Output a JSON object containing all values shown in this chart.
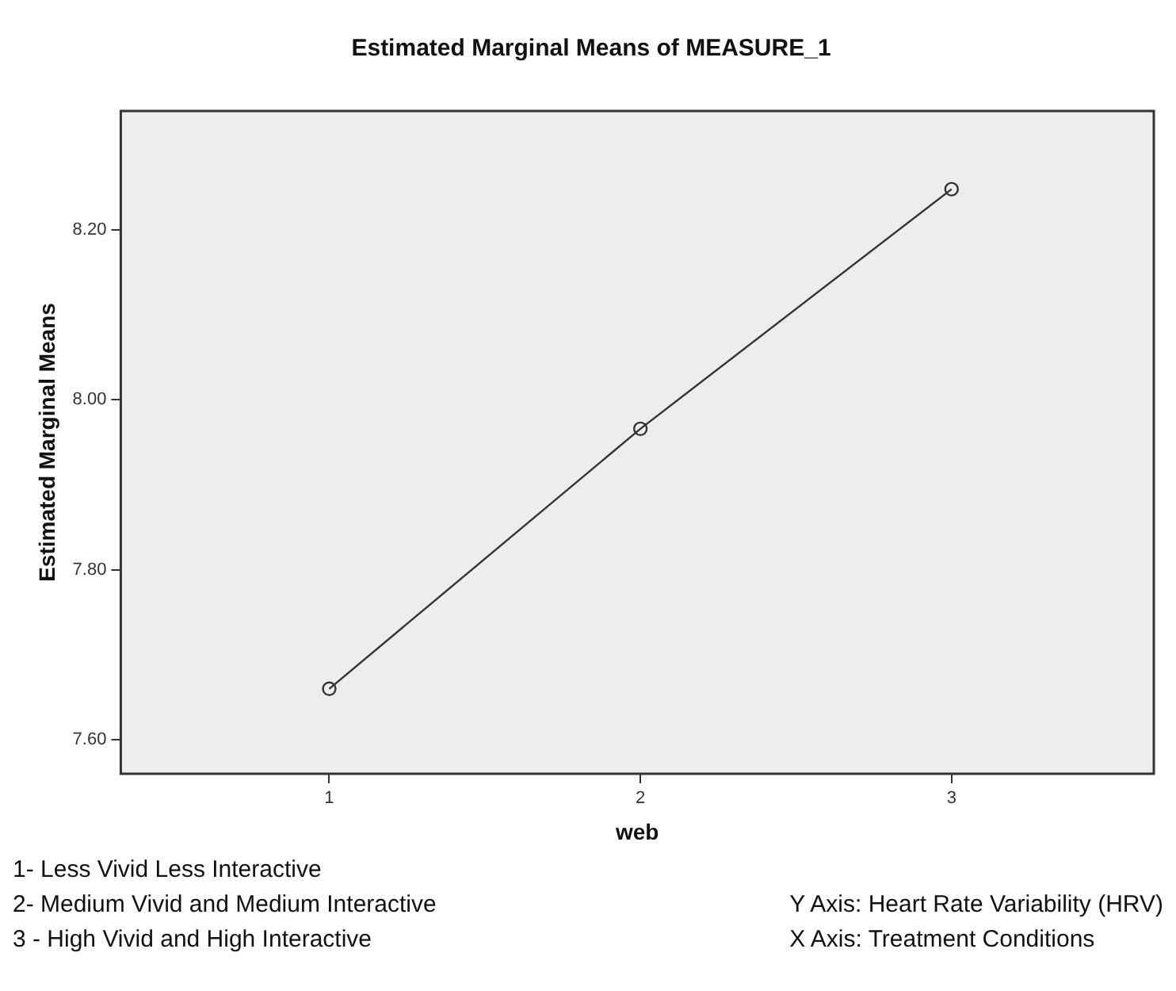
{
  "chart_data": {
    "type": "line",
    "title": "Estimated Marginal Means of MEASURE_1",
    "xlabel": "web",
    "ylabel": "Estimated Marginal Means",
    "x": [
      1,
      2,
      3
    ],
    "series": [
      {
        "color": "#333333",
        "values": [
          7.66,
          7.966,
          8.248
        ]
      }
    ],
    "xlim": [
      0.33,
      3.65
    ],
    "xticks": [
      1,
      2,
      3
    ],
    "ylim": [
      7.56,
      8.34
    ],
    "yticks": [
      {
        "value": 7.6,
        "label": "7.60"
      },
      {
        "value": 7.8,
        "label": "7.80"
      },
      {
        "value": 8.0,
        "label": "8.00"
      },
      {
        "value": 8.2,
        "label": "8.20"
      }
    ],
    "grid": false,
    "legend": false,
    "marker": "circle",
    "line_style": "solid",
    "annotations": [
      "1- Less Vivid Less Interactive",
      "2- Medium Vivid and Medium Interactive",
      "3 - High Vivid and High Interactive",
      "Y Axis: Heart Rate Variability (HRV)",
      "X Axis: Treatment Conditions"
    ]
  }
}
